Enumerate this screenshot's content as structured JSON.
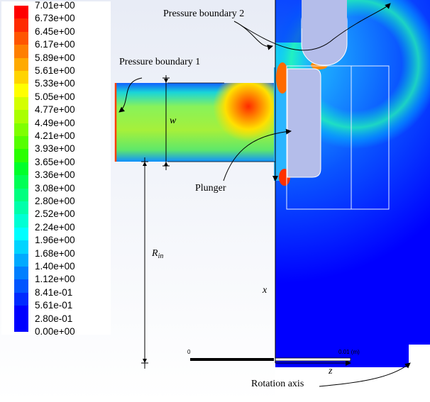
{
  "legend": {
    "ticks": [
      "7.01e+00",
      "6.73e+00",
      "6.45e+00",
      "6.17e+00",
      "5.89e+00",
      "5.61e+00",
      "5.33e+00",
      "5.05e+00",
      "4.77e+00",
      "4.49e+00",
      "4.21e+00",
      "3.93e+00",
      "3.65e+00",
      "3.36e+00",
      "3.08e+00",
      "2.80e+00",
      "2.52e+00",
      "2.24e+00",
      "1.96e+00",
      "1.68e+00",
      "1.40e+00",
      "1.12e+00",
      "8.41e-01",
      "5.61e-01",
      "2.80e-01",
      "0.00e+00"
    ],
    "colors": [
      "#ff0000",
      "#ff2a00",
      "#ff5500",
      "#ff7f00",
      "#ffaa00",
      "#ffd400",
      "#ffff00",
      "#d4ff00",
      "#aaff00",
      "#7fff00",
      "#55ff00",
      "#2aff00",
      "#00ff2a",
      "#00ff55",
      "#00ff7f",
      "#00ffaa",
      "#00ffd4",
      "#00ffff",
      "#00d4ff",
      "#00aaff",
      "#007fff",
      "#0055ff",
      "#002aff",
      "#0000ff",
      "#0000ff"
    ]
  },
  "annotations": {
    "pressure_boundary_1": "Pressure boundary 1",
    "pressure_boundary_2": "Pressure boundary 2",
    "plunger": "Plunger",
    "rotation_axis": "Rotation axis",
    "w_label": "w",
    "rin_main": "R",
    "rin_sub": "in",
    "x_axis": "x",
    "z_axis": "z"
  },
  "scale_bar": {
    "start": "0",
    "end": "0.01 (m)"
  }
}
